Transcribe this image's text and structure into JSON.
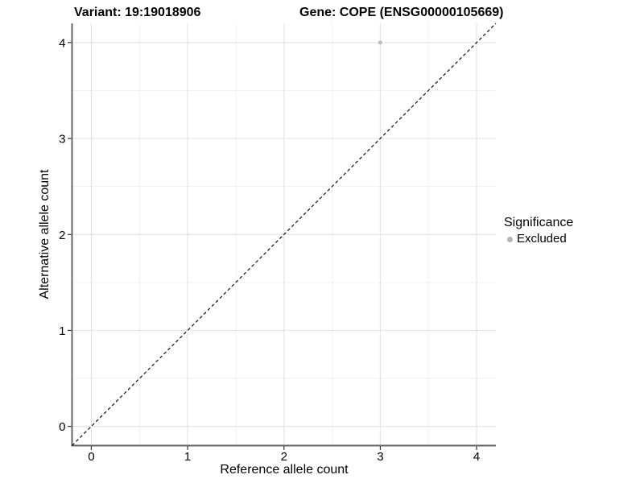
{
  "chart_data": {
    "type": "scatter",
    "titles": {
      "variant": "Variant: 19:19018906",
      "gene": "Gene: COPE (ENSG00000105669)"
    },
    "xlabel": "Reference allele count",
    "ylabel": "Alternative allele count",
    "xlim": [
      -0.2,
      4.2
    ],
    "ylim": [
      -0.2,
      4.2
    ],
    "xticks": [
      0,
      1,
      2,
      3,
      4
    ],
    "yticks": [
      0,
      1,
      2,
      3,
      4
    ],
    "xticks_minor": [
      0.5,
      1.5,
      2.5,
      3.5
    ],
    "yticks_minor": [
      0.5,
      1.5,
      2.5,
      3.5
    ],
    "grid": "major+minor",
    "identity_line": {
      "slope": 1,
      "intercept": 0,
      "style": "dashed",
      "color": "#111111"
    },
    "series": [
      {
        "name": "Excluded",
        "color": "#bdbdbd",
        "points": [
          {
            "x": 3,
            "y": 4
          }
        ]
      }
    ],
    "legend": {
      "title": "Significance",
      "position": "right",
      "entries": [
        {
          "label": "Excluded",
          "color": "#b3b3b3",
          "marker": "circle"
        }
      ]
    },
    "style": {
      "background": "#ffffff",
      "grid_major_color": "#e4e4e4",
      "grid_minor_color": "#f1f1f1",
      "axis_line_color": "#666666",
      "tick_color": "#333333",
      "text_color": "#000000"
    }
  }
}
